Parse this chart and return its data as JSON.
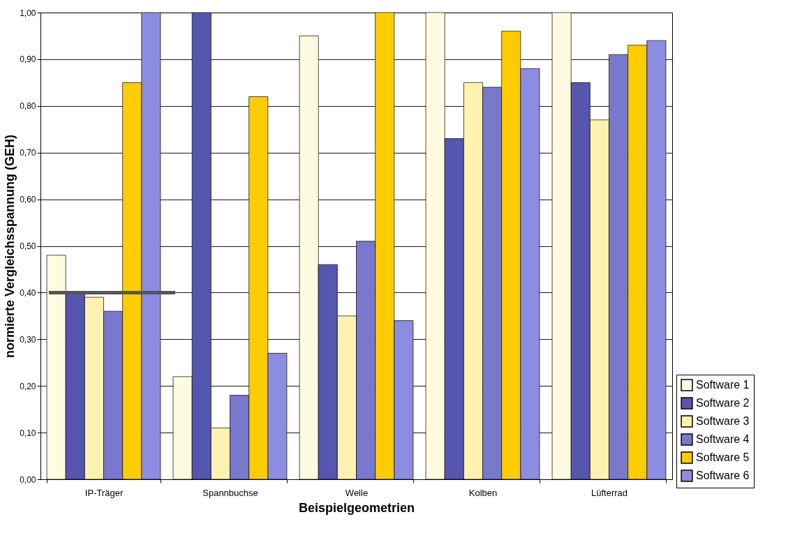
{
  "chart_data": {
    "type": "bar",
    "xlabel": "Beispielgeometrien",
    "ylabel": "normierte Vergleichsspannung (GEH)",
    "categories": [
      "IP-Träger",
      "Spannbuchse",
      "Welle",
      "Kolben",
      "Lüfterrad"
    ],
    "series": [
      {
        "name": "Software 1",
        "color": "#fffbe0",
        "values": [
          0.48,
          0.22,
          0.95,
          1.0,
          1.0
        ]
      },
      {
        "name": "Software 2",
        "color": "#5656b0",
        "values": [
          0.4,
          1.0,
          0.46,
          0.73,
          0.85
        ]
      },
      {
        "name": "Software 3",
        "color": "#fff2b0",
        "values": [
          0.39,
          0.11,
          0.35,
          0.85,
          0.77
        ]
      },
      {
        "name": "Software 4",
        "color": "#7878cc",
        "values": [
          0.36,
          0.18,
          0.51,
          0.84,
          0.91
        ]
      },
      {
        "name": "Software 5",
        "color": "#ffcc00",
        "values": [
          0.85,
          0.82,
          1.0,
          0.96,
          0.93
        ]
      },
      {
        "name": "Software 6",
        "color": "#8c8ce0",
        "values": [
          1.0,
          0.27,
          0.34,
          0.88,
          0.94
        ]
      }
    ],
    "ylim": [
      0,
      1
    ],
    "yticks": [
      {
        "value": 0,
        "label": "0,00"
      },
      {
        "value": 0.1,
        "label": "0,10"
      },
      {
        "value": 0.2,
        "label": "0,20"
      },
      {
        "value": 0.3,
        "label": "0,30"
      },
      {
        "value": 0.4,
        "label": "0,40"
      },
      {
        "value": 0.5,
        "label": "0,50"
      },
      {
        "value": 0.6,
        "label": "0,60"
      },
      {
        "value": 0.7,
        "label": "0,70"
      },
      {
        "value": 0.8,
        "label": "0,80"
      },
      {
        "value": 0.9,
        "label": "0,90"
      },
      {
        "value": 1,
        "label": "1,00"
      }
    ],
    "ref_lines": [
      {
        "axis": "y",
        "value": 0.4,
        "color": "#555555"
      }
    ],
    "grid": "y",
    "legend": "bottom right"
  }
}
